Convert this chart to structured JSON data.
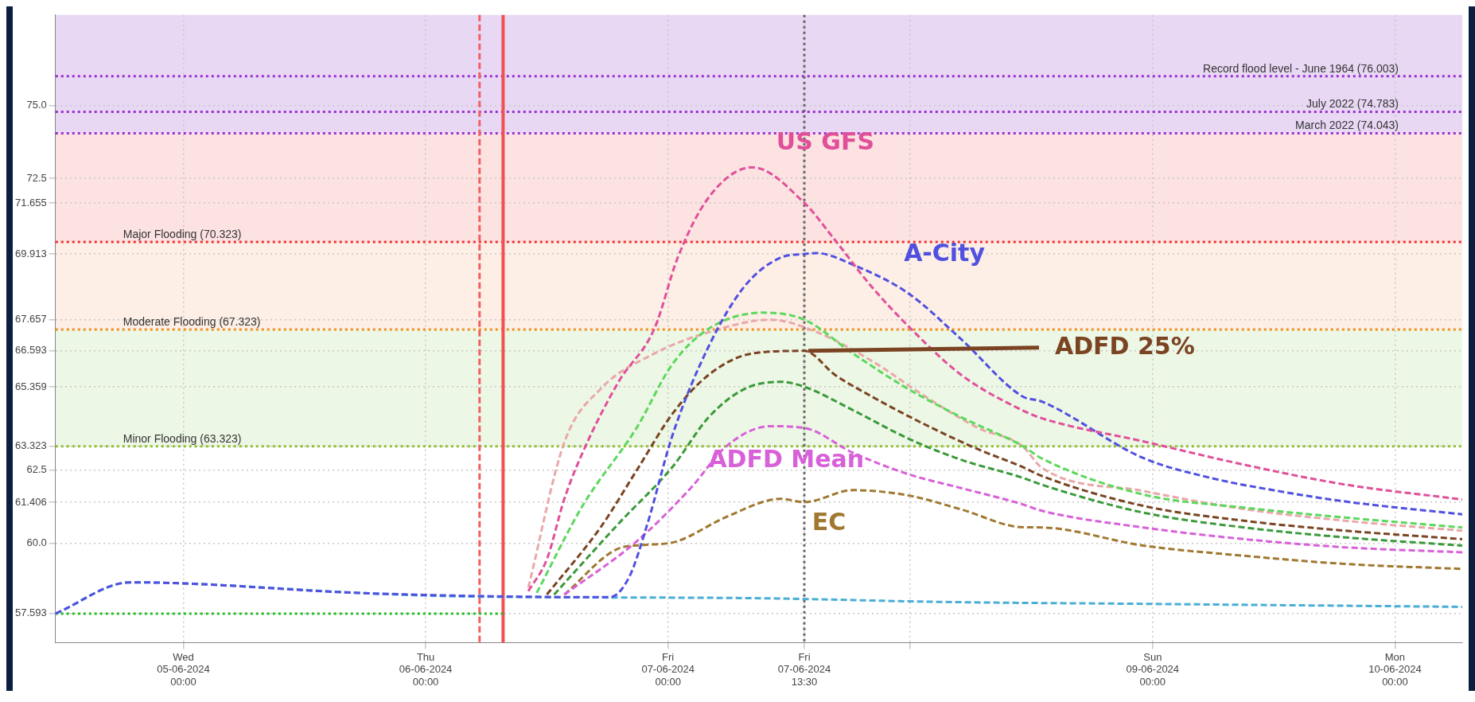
{
  "chart_data": {
    "type": "line",
    "line_style": "dashed",
    "grid": true,
    "xlim": [
      "2024-06-04T11:20",
      "2024-06-10T06:40"
    ],
    "xticks": [
      {
        "value": "2024-06-05T00:00",
        "label": "Wed\n05-06-2024\n00:00"
      },
      {
        "value": "2024-06-06T00:00",
        "label": "Thu\n06-06-2024\n00:00"
      },
      {
        "value": "2024-06-07T00:00",
        "label": "Fri\n07-06-2024\n00:00"
      },
      {
        "value": "2024-06-07T13:30",
        "label": "Fri\n07-06-2024\n13:30"
      },
      {
        "value": "2024-06-08T00:00",
        "label": null
      },
      {
        "value": "2024-06-09T00:00",
        "label": "Sun\n09-06-2024\n00:00"
      },
      {
        "value": "2024-06-10T00:00",
        "label": "Mon\n10-06-2024\n00:00"
      }
    ],
    "ylim": [
      56.6,
      78.1
    ],
    "yticks": [
      57.593,
      {
        "value": 60,
        "label": "60.0"
      },
      61.406,
      62.5,
      63.323,
      65.359,
      66.593,
      67.657,
      69.913,
      71.655,
      72.5,
      {
        "value": 75,
        "label": "75.0"
      }
    ],
    "bands": [
      {
        "axis": "y",
        "from": 74.043,
        "to": 78.1,
        "color": "#e8d8f4"
      },
      {
        "axis": "y",
        "from": 70.323,
        "to": 74.043,
        "color": "#fde2e2"
      },
      {
        "axis": "y",
        "from": 67.323,
        "to": 70.323,
        "color": "#fdeee6"
      },
      {
        "axis": "y",
        "from": 63.323,
        "to": 67.323,
        "color": "#edf7e6"
      }
    ],
    "ref_lines": [
      {
        "axis": "y",
        "value": 76.003,
        "label": "Record flood level - June 1964 (76.003)",
        "color": "#9b30d0",
        "line_style": "dotted"
      },
      {
        "axis": "y",
        "value": 74.783,
        "label": "July 2022 (74.783)",
        "color": "#9b30d0",
        "line_style": "dotted"
      },
      {
        "axis": "y",
        "value": 74.043,
        "label": "March 2022 (74.043)",
        "color": "#9b30d0",
        "line_style": "dotted"
      },
      {
        "axis": "y",
        "value": 70.323,
        "label": "Major Flooding (70.323)",
        "color": "#f03030",
        "line_style": "dotted"
      },
      {
        "axis": "y",
        "value": 67.323,
        "label": "Moderate Flooding (67.323)",
        "color": "#f09020",
        "line_style": "dotted"
      },
      {
        "axis": "y",
        "value": 63.323,
        "label": "Minor Flooding (63.323)",
        "color": "#90c030",
        "line_style": "dotted"
      },
      {
        "axis": "x",
        "value": "2024-06-06T05:20",
        "color": "#f06060",
        "line_style": "dashed"
      },
      {
        "axis": "x",
        "value": "2024-06-06T07:40",
        "color": "#f05050",
        "line_style": "solid"
      },
      {
        "axis": "x",
        "value": "2024-06-07T13:30",
        "color": "#666666",
        "line_style": "dotted"
      }
    ],
    "series": [
      {
        "name": "US GFS",
        "color": "#e0509a",
        "x": [
          "2024-06-06T10:10",
          "2024-06-06T12:00",
          "2024-06-06T13:44",
          "2024-06-06T15:32",
          "2024-06-06T19:06",
          "2024-06-06T22:39",
          "2024-06-07T00:58",
          "2024-06-07T04:02",
          "2024-06-07T08:20",
          "2024-06-07T13:30",
          "2024-06-07T16:32",
          "2024-06-07T20:07",
          "2024-06-08T00:24",
          "2024-06-08T05:02",
          "2024-06-08T11:04",
          "2024-06-08T13:03",
          "2024-06-08T23:04",
          "2024-06-09T09:04",
          "2024-06-09T19:05",
          "2024-06-10T06:40"
        ],
        "values": [
          58.36,
          59.45,
          61.52,
          63.1,
          65.53,
          67.35,
          69.79,
          71.85,
          72.88,
          71.66,
          70.39,
          68.81,
          67.23,
          65.77,
          64.56,
          64.28,
          63.49,
          62.69,
          62.01,
          61.5
        ]
      },
      {
        "name": "A-City",
        "color": "#5050e0",
        "x": [
          "2024-06-04T11:20",
          "2024-06-04T18:45",
          "2024-06-05T18:40",
          "2024-06-06T18:14",
          "2024-06-06T20:10",
          "2024-06-06T21:58",
          "2024-06-07T00:27",
          "2024-06-07T04:02",
          "2024-06-07T07:36",
          "2024-06-07T11:11",
          "2024-06-07T13:30",
          "2024-06-07T14:46",
          "2024-06-07T18:19",
          "2024-06-07T23:46",
          "2024-06-08T05:02",
          "2024-06-08T11:04",
          "2024-06-08T13:03",
          "2024-06-08T23:04",
          "2024-06-09T05:44",
          "2024-06-09T12:24",
          "2024-06-09T19:05",
          "2024-06-10T06:40"
        ],
        "values": [
          57.59,
          58.66,
          58.28,
          58.15,
          58.85,
          60.67,
          63.71,
          66.75,
          68.81,
          69.79,
          69.91,
          69.94,
          69.54,
          68.57,
          66.99,
          65.04,
          64.85,
          62.92,
          62.24,
          61.79,
          61.43,
          60.99
        ]
      },
      {
        "name": "ADFD 25%",
        "color": "#7a4422",
        "x": [
          "2024-06-06T12:00",
          "2024-06-06T17:20",
          "2024-06-06T20:53",
          "2024-06-07T00:27",
          "2024-06-07T04:02",
          "2024-06-07T08:20",
          "2024-06-07T13:30",
          "2024-06-07T16:32",
          "2024-06-07T20:07",
          "2024-06-08T01:26",
          "2024-06-08T06:43",
          "2024-06-08T11:04",
          "2024-06-08T13:03",
          "2024-06-08T23:04",
          "2024-06-09T09:04",
          "2024-06-09T19:05",
          "2024-06-10T06:40"
        ],
        "values": [
          58.24,
          60.55,
          62.49,
          64.44,
          65.77,
          66.5,
          66.59,
          65.77,
          65.04,
          64.07,
          63.22,
          62.62,
          62.3,
          61.28,
          60.77,
          60.43,
          60.14
        ]
      },
      {
        "name": "ADFD Mean",
        "color": "#d860d8",
        "x": [
          "2024-06-06T13:44",
          "2024-06-06T20:53",
          "2024-06-07T02:15",
          "2024-06-07T05:50",
          "2024-06-07T10:08",
          "2024-06-07T13:30",
          "2024-06-07T18:19",
          "2024-06-07T23:46",
          "2024-06-08T05:02",
          "2024-06-08T11:04",
          "2024-06-08T13:03",
          "2024-06-08T23:04",
          "2024-06-09T09:04",
          "2024-06-09T19:05",
          "2024-06-10T06:40"
        ],
        "values": [
          58.24,
          60.06,
          61.89,
          63.34,
          64.01,
          63.95,
          63.1,
          62.37,
          61.89,
          61.34,
          61.11,
          60.54,
          60.14,
          59.86,
          59.69
        ]
      },
      {
        "name": "EC",
        "color": "#a07830",
        "x": [
          "2024-06-06T13:44",
          "2024-06-06T19:06",
          "2024-06-06T21:36",
          "2024-06-07T00:49",
          "2024-06-07T05:50",
          "2024-06-07T11:11",
          "2024-06-07T13:30",
          "2024-06-07T18:19",
          "2024-06-07T23:46",
          "2024-06-08T05:02",
          "2024-06-08T11:04",
          "2024-06-08T13:03",
          "2024-06-08T23:04",
          "2024-06-09T09:04",
          "2024-06-09T19:05",
          "2024-06-10T06:40"
        ],
        "values": [
          58.24,
          59.82,
          59.94,
          60.06,
          60.91,
          61.52,
          61.41,
          61.82,
          61.64,
          61.16,
          60.55,
          60.54,
          59.92,
          59.57,
          59.29,
          59.12
        ]
      },
      {
        "color": "#5cd85c",
        "x": [
          "2024-06-06T11:00",
          "2024-06-06T15:32",
          "2024-06-06T20:53",
          "2024-06-07T00:27",
          "2024-06-07T04:02",
          "2024-06-07T09:24",
          "2024-06-07T13:30",
          "2024-06-07T18:19",
          "2024-06-07T23:46",
          "2024-06-08T05:02",
          "2024-06-08T11:04",
          "2024-06-08T13:03",
          "2024-06-08T23:04",
          "2024-06-09T09:04",
          "2024-06-09T19:05",
          "2024-06-10T06:40"
        ],
        "values": [
          58.3,
          61.28,
          63.95,
          66.14,
          67.35,
          67.9,
          67.66,
          66.5,
          65.29,
          64.32,
          63.34,
          62.9,
          61.67,
          61.22,
          60.88,
          60.54
        ]
      },
      {
        "color": "#3a9a3a",
        "x": [
          "2024-06-06T12:43",
          "2024-06-06T19:06",
          "2024-06-07T00:27",
          "2024-06-07T04:02",
          "2024-06-07T07:36",
          "2024-06-07T11:11",
          "2024-06-07T13:30",
          "2024-06-07T18:19",
          "2024-06-07T23:46",
          "2024-06-08T05:02",
          "2024-06-08T11:04",
          "2024-06-08T13:03",
          "2024-06-08T23:04",
          "2024-06-09T09:04",
          "2024-06-09T19:05",
          "2024-06-10T06:40"
        ],
        "values": [
          58.24,
          60.67,
          62.62,
          64.32,
          65.29,
          65.53,
          65.36,
          64.56,
          63.59,
          62.86,
          62.25,
          62.0,
          61.05,
          60.54,
          60.2,
          59.92
        ]
      },
      {
        "color": "#eaa8a8",
        "x": [
          "2024-06-06T10:10",
          "2024-06-06T13:44",
          "2024-06-06T17:20",
          "2024-06-06T22:39",
          "2024-06-07T04:02",
          "2024-06-07T10:08",
          "2024-06-07T14:46",
          "2024-06-07T20:07",
          "2024-06-08T01:26",
          "2024-06-08T06:43",
          "2024-06-08T11:04",
          "2024-06-08T13:03",
          "2024-06-08T23:04",
          "2024-06-09T09:04",
          "2024-06-09T19:05",
          "2024-06-10T06:40"
        ],
        "values": [
          58.48,
          63.46,
          65.29,
          66.5,
          67.23,
          67.66,
          67.23,
          66.26,
          65.04,
          63.95,
          63.34,
          62.58,
          61.79,
          61.17,
          60.77,
          60.43
        ]
      },
      {
        "color": "#4aaed6",
        "x": [
          "2024-06-04T11:20",
          "2024-06-04T18:45",
          "2024-06-05T18:40",
          "2024-06-06T03:00",
          "2024-06-07T08:00",
          "2024-06-08T03:00",
          "2024-06-09T00:00",
          "2024-06-10T06:40"
        ],
        "values": [
          57.59,
          58.66,
          58.28,
          58.18,
          58.12,
          57.99,
          57.92,
          57.82
        ]
      },
      {
        "color": "#22bb22",
        "line_style": "dotted",
        "x": [
          "2024-06-04T11:20",
          "2024-06-06T07:40"
        ],
        "values": [
          57.59,
          57.59
        ]
      }
    ]
  }
}
